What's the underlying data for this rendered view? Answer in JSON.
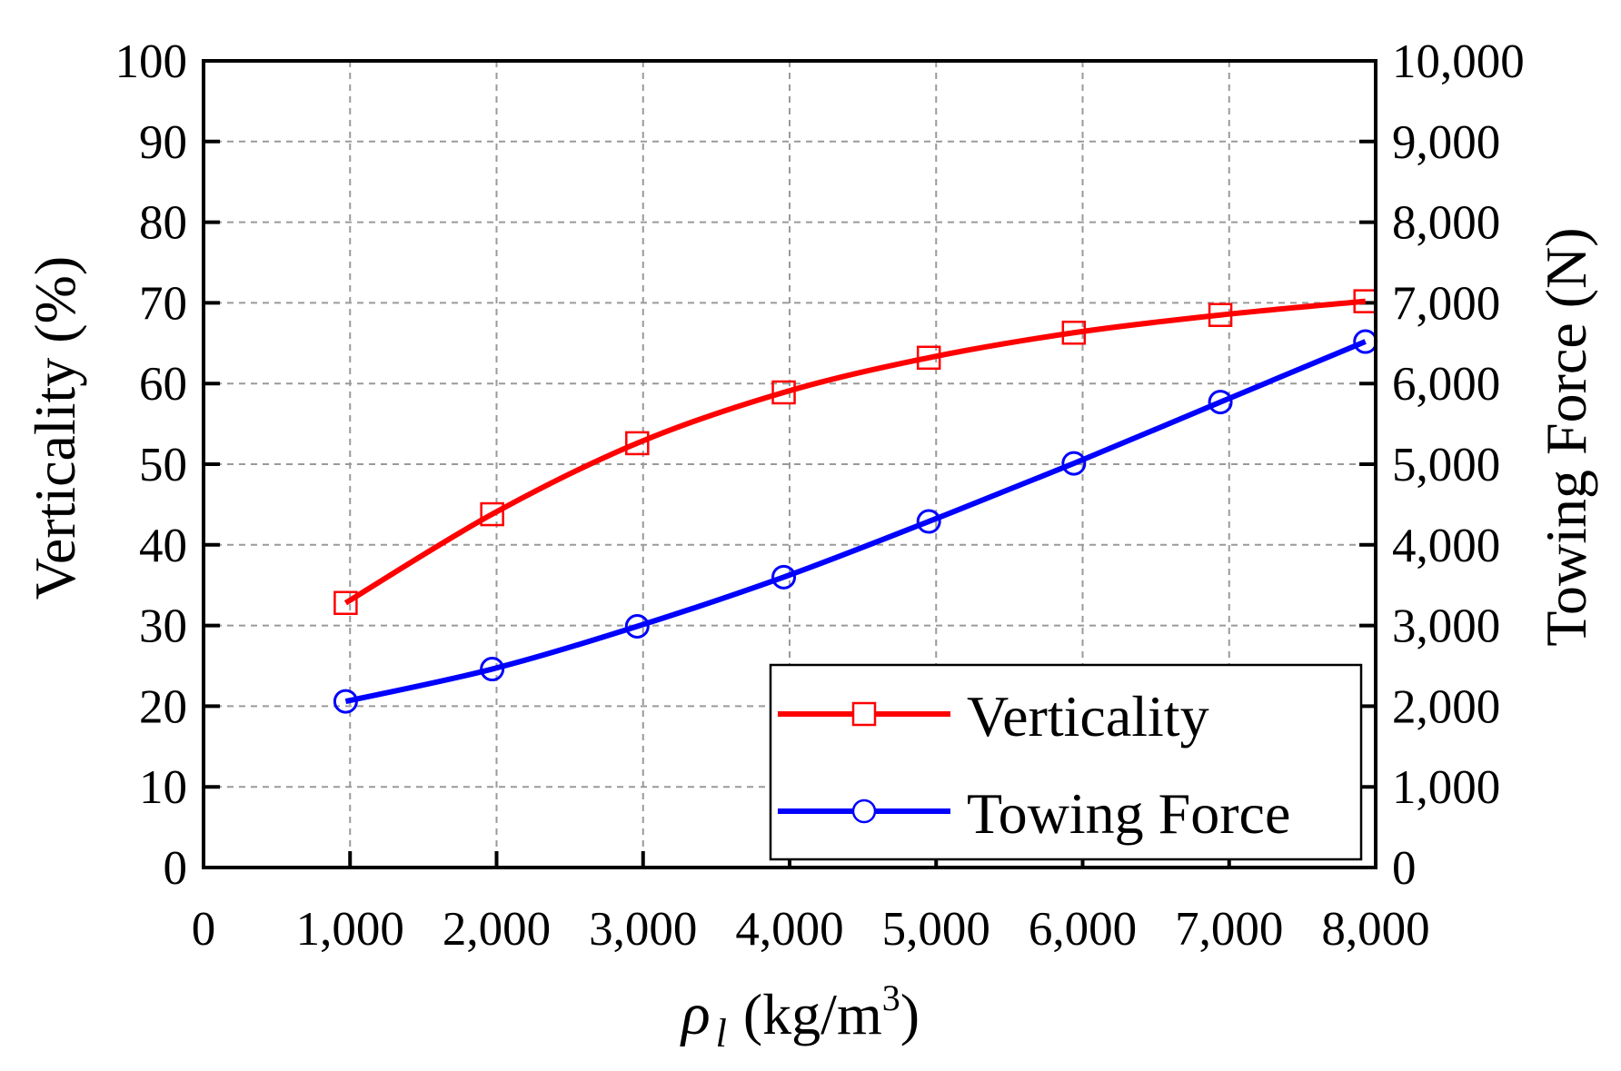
{
  "chart_data": {
    "type": "line",
    "title": "",
    "xlabel": {
      "symbol": "ρ",
      "subscript": "l",
      "unit": "(kg/m",
      "unit_power": "3",
      "unit_close": ")"
    },
    "ylabel_left": "Verticality (%)",
    "ylabel_right": "Towing Force (N)",
    "xlim": [
      0,
      8000
    ],
    "ylim_left": [
      0,
      100
    ],
    "ylim_right": [
      0,
      10000
    ],
    "x_ticks": [
      0,
      1000,
      2000,
      3000,
      4000,
      5000,
      6000,
      7000,
      8000
    ],
    "x_tick_labels": [
      "0",
      "1,000",
      "2,000",
      "3,000",
      "4,000",
      "5,000",
      "6,000",
      "7,000",
      "8,000"
    ],
    "y_left_ticks": [
      0,
      10,
      20,
      30,
      40,
      50,
      60,
      70,
      80,
      90,
      100
    ],
    "y_left_tick_labels": [
      "0",
      "10",
      "20",
      "30",
      "40",
      "50",
      "60",
      "70",
      "80",
      "90",
      "100"
    ],
    "y_right_ticks": [
      0,
      1000,
      2000,
      3000,
      4000,
      5000,
      6000,
      7000,
      8000,
      9000,
      10000
    ],
    "y_right_tick_labels": [
      "0",
      "1,000",
      "2,000",
      "3,000",
      "4,000",
      "5,000",
      "6,000",
      "7,000",
      "8,000",
      "9,000",
      "10,000"
    ],
    "grid": true,
    "legend_position": "bottom-right",
    "series": [
      {
        "name": "Verticality",
        "axis": "left",
        "color": "#ff0000",
        "marker": "square",
        "x": [
          970,
          1970,
          2960,
          3960,
          4950,
          5940,
          6940,
          7930
        ],
        "values": [
          32.8,
          43.8,
          52.6,
          58.9,
          63.2,
          66.3,
          68.5,
          70.2
        ]
      },
      {
        "name": "Towing Force",
        "axis": "right",
        "color": "#0000ff",
        "marker": "circle",
        "x": [
          970,
          1970,
          2960,
          3960,
          4950,
          5940,
          6940,
          7930
        ],
        "values": [
          2060,
          2460,
          2990,
          3600,
          4290,
          5010,
          5770,
          6520
        ]
      }
    ]
  }
}
